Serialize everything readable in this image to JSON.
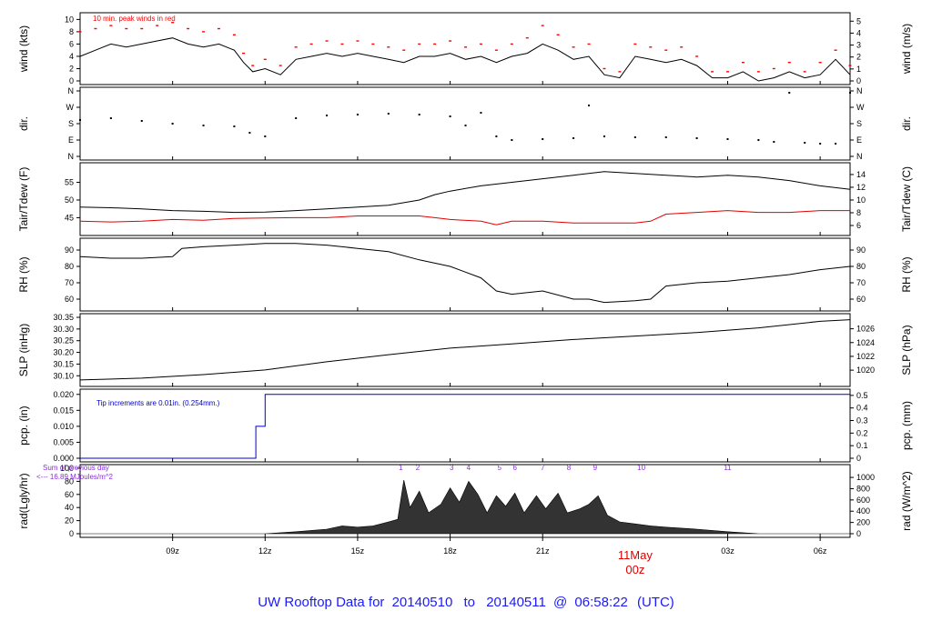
{
  "footer": {
    "prefix": "UW Rooftop Data for",
    "start_date": "20140510",
    "to_word": "to",
    "end_date": "20140511",
    "at": "@",
    "time": "06:58:22",
    "tz": "(UTC)"
  },
  "colors": {
    "footer_text": "#1a1aff",
    "peak": "#ff0000",
    "dewpoint": "#e00000",
    "precip": "#0000cc",
    "rad_note": "#8a2be2",
    "rad_hours": "#8a2be2",
    "day_label": "#e00000"
  },
  "time_axis": {
    "range_hours": [
      6.0,
      30.97
    ],
    "ticks": [
      {
        "hour": 9,
        "label": "09z"
      },
      {
        "hour": 12,
        "label": "12z"
      },
      {
        "hour": 15,
        "label": "15z"
      },
      {
        "hour": 18,
        "label": "18z"
      },
      {
        "hour": 21,
        "label": "21z"
      },
      {
        "hour": 27,
        "label": "03z"
      },
      {
        "hour": 30,
        "label": "06z"
      }
    ],
    "day_label": {
      "hour": 24,
      "date": "11May",
      "time": "00z"
    }
  },
  "chart_data": [
    {
      "id": "wind",
      "type": "line",
      "ylabel_left": "wind (kts)",
      "ylabel_right": "wind (m/s)",
      "ylim": [
        0,
        10.5
      ],
      "left_ticks": [
        0,
        2,
        4,
        6,
        8,
        10
      ],
      "right_ticks": [
        {
          "v": 0,
          "l": "0"
        },
        {
          "v": 1.944,
          "l": "1"
        },
        {
          "v": 3.888,
          "l": "2"
        },
        {
          "v": 5.832,
          "l": "3"
        },
        {
          "v": 7.776,
          "l": "4"
        },
        {
          "v": 9.72,
          "l": "5"
        }
      ],
      "annotation": "10 min. peak winds in red",
      "series": [
        {
          "role": "wind",
          "x": [
            6.0,
            6.5,
            7.0,
            7.5,
            8.0,
            8.5,
            9.0,
            9.5,
            10.0,
            10.5,
            11.0,
            11.3,
            11.6,
            12.0,
            12.5,
            13.0,
            13.5,
            14.0,
            14.5,
            15.0,
            15.5,
            16.0,
            16.5,
            17.0,
            17.5,
            18.0,
            18.5,
            19.0,
            19.5,
            20.0,
            20.5,
            21.0,
            21.5,
            22.0,
            22.5,
            23.0,
            23.5,
            24.0,
            24.5,
            25.0,
            25.5,
            26.0,
            26.5,
            27.0,
            27.5,
            28.0,
            28.5,
            29.0,
            29.5,
            30.0,
            30.5,
            30.97
          ],
          "y": [
            4,
            5,
            6,
            5.5,
            6,
            6.5,
            7,
            6,
            5.5,
            6,
            5,
            3,
            1.5,
            2,
            1,
            3.5,
            4,
            4.5,
            4,
            4.5,
            4,
            3.5,
            3,
            4,
            4,
            4.5,
            3.5,
            4,
            3,
            4,
            4.5,
            6,
            5,
            3.5,
            4,
            1,
            0.5,
            4,
            3.5,
            3,
            3.5,
            2.5,
            0.5,
            0.5,
            1.5,
            0,
            0.5,
            1.5,
            0.5,
            1,
            3.5,
            1
          ]
        },
        {
          "role": "peak",
          "x": [
            6.0,
            6.5,
            7.0,
            7.5,
            8.0,
            8.5,
            9.0,
            9.5,
            10.0,
            10.5,
            11.0,
            11.3,
            11.6,
            12.0,
            12.5,
            13.0,
            13.5,
            14.0,
            14.5,
            15.0,
            15.5,
            16.0,
            16.5,
            17.0,
            17.5,
            18.0,
            18.5,
            19.0,
            19.5,
            20.0,
            20.5,
            21.0,
            21.5,
            22.0,
            22.5,
            23.0,
            23.5,
            24.0,
            24.5,
            25.0,
            25.5,
            26.0,
            26.5,
            27.0,
            27.5,
            28.0,
            28.5,
            29.0,
            29.5,
            30.0,
            30.5,
            30.97
          ],
          "y": [
            8,
            8.5,
            9,
            8.5,
            8.5,
            9,
            9.5,
            8.5,
            8,
            8.5,
            7.5,
            4.5,
            2.5,
            3.5,
            2.5,
            5.5,
            6,
            6.5,
            6,
            6.5,
            6,
            5.5,
            5,
            6,
            6,
            6.5,
            5.5,
            6,
            5,
            6,
            7,
            9,
            7.5,
            5.5,
            6,
            2,
            1.5,
            6,
            5.5,
            5,
            5.5,
            4,
            1.5,
            1.5,
            3,
            1.5,
            2,
            3,
            1.5,
            3,
            5,
            2.5
          ]
        }
      ]
    },
    {
      "id": "dir",
      "type": "scatter",
      "ylabel_left": "dir.",
      "ylabel_right": "dir.",
      "ylim": [
        0,
        360
      ],
      "left_ticks": [
        {
          "v": 0,
          "l": "N"
        },
        {
          "v": 90,
          "l": "E"
        },
        {
          "v": 180,
          "l": "S"
        },
        {
          "v": 270,
          "l": "W"
        },
        {
          "v": 360,
          "l": "N"
        }
      ],
      "right_ticks": [
        {
          "v": 0,
          "l": "N"
        },
        {
          "v": 90,
          "l": "E"
        },
        {
          "v": 180,
          "l": "S"
        },
        {
          "v": 270,
          "l": "W"
        },
        {
          "v": 360,
          "l": "N"
        }
      ],
      "series": [
        {
          "role": "dir",
          "x": [
            6.0,
            7.0,
            8.0,
            9.0,
            10.0,
            11.0,
            11.5,
            12.0,
            13.0,
            14.0,
            15.0,
            16.0,
            17.0,
            18.0,
            18.5,
            19.0,
            19.5,
            20.0,
            21.0,
            22.0,
            22.5,
            23.0,
            24.0,
            25.0,
            26.0,
            27.0,
            28.0,
            28.5,
            29.0,
            29.5,
            30.0,
            30.5,
            30.97
          ],
          "y": [
            200,
            210,
            195,
            180,
            170,
            165,
            130,
            110,
            210,
            225,
            230,
            235,
            230,
            220,
            170,
            240,
            110,
            90,
            95,
            100,
            280,
            110,
            105,
            105,
            100,
            95,
            90,
            80,
            350,
            75,
            70,
            70,
            350
          ]
        }
      ]
    },
    {
      "id": "temp",
      "type": "line",
      "ylabel_left": "Tair/Tdew (F)",
      "ylabel_right": "Tair/Tdew (C)",
      "ylim": [
        41,
        59.5
      ],
      "left_ticks": [
        45,
        50,
        55
      ],
      "right_ticks": [
        {
          "v": 42.8,
          "l": "6"
        },
        {
          "v": 46.4,
          "l": "8"
        },
        {
          "v": 50.0,
          "l": "10"
        },
        {
          "v": 53.6,
          "l": "12"
        },
        {
          "v": 57.2,
          "l": "14"
        }
      ],
      "series": [
        {
          "role": "tair",
          "x": [
            6.0,
            7.0,
            8.0,
            9.0,
            10.0,
            11.0,
            12.0,
            13.0,
            14.0,
            15.0,
            16.0,
            17.0,
            17.5,
            18.0,
            19.0,
            20.0,
            21.0,
            22.0,
            23.0,
            24.0,
            25.0,
            26.0,
            27.0,
            28.0,
            29.0,
            30.0,
            30.97
          ],
          "y": [
            48,
            47.8,
            47.5,
            47,
            46.8,
            46.5,
            46.6,
            47,
            47.5,
            48,
            48.5,
            50,
            51.5,
            52.5,
            54,
            55,
            56,
            57,
            58,
            57.5,
            57,
            56.5,
            57,
            56.5,
            55.5,
            54,
            53
          ]
        },
        {
          "role": "tdew",
          "x": [
            6.0,
            7.0,
            8.0,
            9.0,
            10.0,
            11.0,
            12.0,
            13.0,
            14.0,
            15.0,
            16.0,
            17.0,
            17.5,
            18.0,
            19.0,
            19.5,
            20.0,
            21.0,
            22.0,
            23.0,
            24.0,
            24.5,
            25.0,
            26.0,
            27.0,
            28.0,
            29.0,
            30.0,
            30.97
          ],
          "y": [
            44,
            43.8,
            44,
            44.5,
            44.3,
            44.8,
            44.9,
            45,
            45,
            45.5,
            45.5,
            45.5,
            45,
            44.5,
            44,
            43,
            44,
            44,
            43.5,
            43.5,
            43.5,
            44,
            46,
            46.5,
            47,
            46.5,
            46.5,
            47,
            47
          ]
        }
      ]
    },
    {
      "id": "rh",
      "type": "line",
      "ylabel_left": "RH (%)",
      "ylabel_right": "RH (%)",
      "ylim": [
        55,
        95
      ],
      "left_ticks": [
        60,
        70,
        80,
        90
      ],
      "right_ticks": [
        {
          "v": 60,
          "l": "60"
        },
        {
          "v": 70,
          "l": "70"
        },
        {
          "v": 80,
          "l": "80"
        },
        {
          "v": 90,
          "l": "90"
        }
      ],
      "series": [
        {
          "role": "rh",
          "x": [
            6.0,
            7.0,
            8.0,
            9.0,
            9.3,
            10.0,
            11.0,
            12.0,
            13.0,
            14.0,
            15.0,
            16.0,
            17.0,
            18.0,
            19.0,
            19.5,
            20.0,
            21.0,
            22.0,
            22.5,
            23.0,
            24.0,
            24.5,
            25.0,
            26.0,
            27.0,
            28.0,
            29.0,
            30.0,
            30.97
          ],
          "y": [
            86,
            85,
            85,
            86,
            91,
            92,
            93,
            94,
            94,
            93,
            91,
            89,
            84,
            80,
            73,
            65,
            63,
            65,
            60,
            60,
            58,
            59,
            60,
            68,
            70,
            71,
            73,
            75,
            78,
            80
          ]
        }
      ]
    },
    {
      "id": "slp",
      "type": "line",
      "ylabel_left": "SLP (inHg)",
      "ylabel_right": "SLP (hPa)",
      "ylim": [
        30.07,
        30.35
      ],
      "left_ticks": [
        30.1,
        30.15,
        30.2,
        30.25,
        30.3,
        30.35
      ],
      "left_tick_labels": [
        "30.10",
        "30.15",
        "30.20",
        "30.25",
        "30.30",
        "30.35"
      ],
      "right_ticks": [
        {
          "v": 30.124,
          "l": "1020"
        },
        {
          "v": 30.183,
          "l": "1022"
        },
        {
          "v": 30.242,
          "l": "1024"
        },
        {
          "v": 30.301,
          "l": "1026"
        }
      ],
      "series": [
        {
          "role": "slp",
          "x": [
            6.0,
            8.0,
            10.0,
            12.0,
            14.0,
            16.0,
            18.0,
            20.0,
            22.0,
            24.0,
            26.0,
            28.0,
            30.0,
            30.97
          ],
          "y": [
            30.082,
            30.09,
            30.105,
            30.125,
            30.16,
            30.19,
            30.218,
            30.236,
            30.255,
            30.27,
            30.285,
            30.305,
            30.333,
            30.34
          ]
        }
      ]
    },
    {
      "id": "pcp",
      "type": "line",
      "ylabel_left": "pcp. (in)",
      "ylabel_right": "pcp. (mm)",
      "ylim": [
        0,
        0.0205
      ],
      "left_ticks": [
        0,
        0.005,
        0.01,
        0.015,
        0.02
      ],
      "left_tick_labels": [
        "0.000",
        "0.005",
        "0.010",
        "0.015",
        "0.020"
      ],
      "right_ticks": [
        {
          "v": 0,
          "l": "0"
        },
        {
          "v": 0.003937,
          "l": "0.1"
        },
        {
          "v": 0.007874,
          "l": "0.2"
        },
        {
          "v": 0.011811,
          "l": "0.3"
        },
        {
          "v": 0.015748,
          "l": "0.4"
        },
        {
          "v": 0.019685,
          "l": "0.5"
        }
      ],
      "annotation": "Tip increments are 0.01in. (0.254mm.)",
      "series": [
        {
          "role": "pcp",
          "x": [
            6.0,
            11.7,
            11.7,
            12.0,
            12.0,
            30.97
          ],
          "y": [
            0,
            0,
            0.01,
            0.01,
            0.02,
            0.02
          ]
        }
      ]
    },
    {
      "id": "rad",
      "type": "area",
      "ylabel_left": "rad(Lgly/hr)",
      "ylabel_right": "rad (W/m^2)",
      "ylim": [
        0,
        100
      ],
      "left_ticks": [
        0,
        20,
        40,
        60,
        80,
        100
      ],
      "right_ticks": [
        {
          "v": 0,
          "l": "0"
        },
        {
          "v": 17.2,
          "l": "200"
        },
        {
          "v": 34.4,
          "l": "400"
        },
        {
          "v": 51.6,
          "l": "600"
        },
        {
          "v": 68.8,
          "l": "800"
        },
        {
          "v": 86.0,
          "l": "1000"
        }
      ],
      "note_line1": "Sum of previous day",
      "note_line2": "<--- 16.89 MJoules/m^2",
      "hour_marks": [
        {
          "x": 16.4,
          "l": "1"
        },
        {
          "x": 16.95,
          "l": "2"
        },
        {
          "x": 18.05,
          "l": "3"
        },
        {
          "x": 18.6,
          "l": "4"
        },
        {
          "x": 19.6,
          "l": "5"
        },
        {
          "x": 20.1,
          "l": "6"
        },
        {
          "x": 21.0,
          "l": "7"
        },
        {
          "x": 21.85,
          "l": "8"
        },
        {
          "x": 22.7,
          "l": "9"
        },
        {
          "x": 24.2,
          "l": "10"
        },
        {
          "x": 27.0,
          "l": "11"
        }
      ],
      "series": [
        {
          "role": "rad",
          "x": [
            6.0,
            12.0,
            13.0,
            14.0,
            14.5,
            15.0,
            15.5,
            16.0,
            16.3,
            16.5,
            16.7,
            17.0,
            17.3,
            17.7,
            18.0,
            18.3,
            18.6,
            18.9,
            19.2,
            19.5,
            19.8,
            20.1,
            20.4,
            20.8,
            21.1,
            21.5,
            21.8,
            22.2,
            22.5,
            22.8,
            23.1,
            23.5,
            24.0,
            24.5,
            25.0,
            26.0,
            27.0,
            28.0,
            30.97
          ],
          "y": [
            0,
            0,
            3,
            7,
            12,
            10,
            12,
            18,
            22,
            82,
            40,
            65,
            32,
            45,
            70,
            48,
            80,
            60,
            32,
            58,
            42,
            62,
            32,
            58,
            38,
            62,
            32,
            38,
            45,
            58,
            28,
            18,
            15,
            12,
            10,
            7,
            3,
            0,
            0
          ]
        }
      ]
    }
  ]
}
